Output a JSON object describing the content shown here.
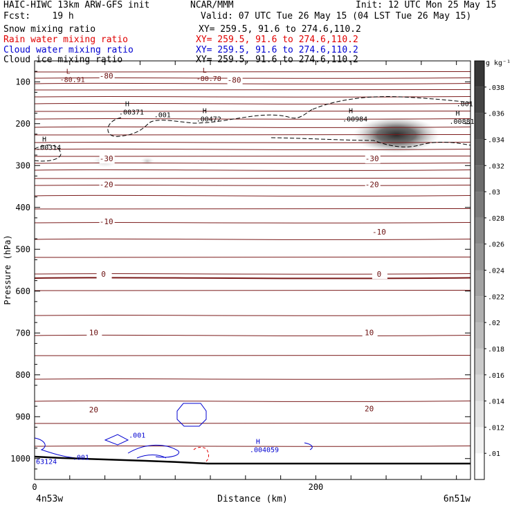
{
  "header": {
    "model": "HAIC-HIWC 13km ARW-GFS init",
    "center": "NCAR/MMM",
    "init": "Init: 12 UTC Mon 25 May 15",
    "fcst": "Fcst:    19 h",
    "valid": "Valid: 07 UTC Tue 26 May 15 (04 LST Tue 26 May 15)",
    "fields": [
      {
        "name": "Snow mixing ratio",
        "xy": "XY= 259.5, 91.6 to 274.6,110.2",
        "color": "#000000"
      },
      {
        "name": "Rain water mixing ratio",
        "xy": "XY= 259.5, 91.6 to 274.6,110.2",
        "color": "#e00000"
      },
      {
        "name": "Cloud water mixing ratio",
        "xy": "XY= 259.5, 91.6 to 274.6,110.2",
        "color": "#0000d0"
      },
      {
        "name": "Cloud ice mixing ratio",
        "xy": "XY= 259.5, 91.6 to 274.6,110.2",
        "color": "#000000"
      }
    ]
  },
  "chart_data": {
    "type": "contour-cross-section",
    "ylabel": "Pressure (hPa)",
    "xlabel": "Distance (km)",
    "x_ticks": [
      0,
      200
    ],
    "y_ticks": [
      100,
      200,
      300,
      400,
      500,
      600,
      700,
      800,
      900,
      1000
    ],
    "xlim": [
      0,
      310
    ],
    "ylim_pressure": [
      50,
      1050
    ],
    "x_end_labels": {
      "left": "4n53w",
      "right": "6n51w"
    },
    "colorbar": {
      "unit": "g kg⁻¹",
      "ticks": [
        ".01",
        ".012",
        ".014",
        ".016",
        ".018",
        ".02",
        ".022",
        ".024",
        ".026",
        ".028",
        ".03",
        ".032",
        ".034",
        ".036",
        ".038"
      ]
    },
    "temperature_labels": [
      {
        "text": "-80",
        "x": 51,
        "p": 92
      },
      {
        "text": "-80",
        "x": 142,
        "p": 102
      },
      {
        "text": "-30",
        "x": 51,
        "p": 290
      },
      {
        "text": "-30",
        "x": 240,
        "p": 290
      },
      {
        "text": "-20",
        "x": 51,
        "p": 352
      },
      {
        "text": "-20",
        "x": 240,
        "p": 352
      },
      {
        "text": "-10",
        "x": 51,
        "p": 440
      },
      {
        "text": "-10",
        "x": 245,
        "p": 465
      },
      {
        "text": "0",
        "x": 49,
        "p": 566
      },
      {
        "text": "0",
        "x": 245,
        "p": 566
      },
      {
        "text": "10",
        "x": 42,
        "p": 705
      },
      {
        "text": "10",
        "x": 238,
        "p": 705
      },
      {
        "text": "20",
        "x": 42,
        "p": 890
      },
      {
        "text": "20",
        "x": 238,
        "p": 887
      }
    ],
    "extrema_labels": [
      {
        "mark": "L",
        "value": "-80.91",
        "x": 18,
        "p": 100,
        "color": "#6b0f0f"
      },
      {
        "mark": "L",
        "value": "-80.78",
        "x": 115,
        "p": 98,
        "color": "#6b0f0f"
      },
      {
        "mark": "H",
        "value": ".00371",
        "x": 60,
        "p": 178,
        "color": "#000000"
      },
      {
        "mark": "H",
        "value": ".00472",
        "x": 115,
        "p": 195,
        "color": "#000000"
      },
      {
        "mark": "H",
        "value": ".00984",
        "x": 219,
        "p": 195,
        "color": "#000000"
      },
      {
        "mark": "H",
        "value": ".00881",
        "x": 295,
        "p": 200,
        "color": "#000000"
      },
      {
        "mark": "H",
        "value": ".00314",
        "x": 1,
        "p": 262,
        "color": "#000000"
      },
      {
        "mark": "H",
        "value": ".004059",
        "x": 153,
        "p": 985,
        "color": "#0000d0"
      }
    ],
    "contour_labels": [
      {
        "text": ".001",
        "x": 85,
        "p": 185,
        "color": "#000000"
      },
      {
        "text": ".001",
        "x": 300,
        "p": 158,
        "color": "#000000"
      },
      {
        "text": ".001",
        "x": 67,
        "p": 950,
        "color": "#0000d0"
      },
      {
        "text": ".001",
        "x": 27,
        "p": 1003,
        "color": "#0000d0"
      },
      {
        "text": "63124",
        "x": 1,
        "p": 1013,
        "color": "#0000d0"
      }
    ]
  }
}
